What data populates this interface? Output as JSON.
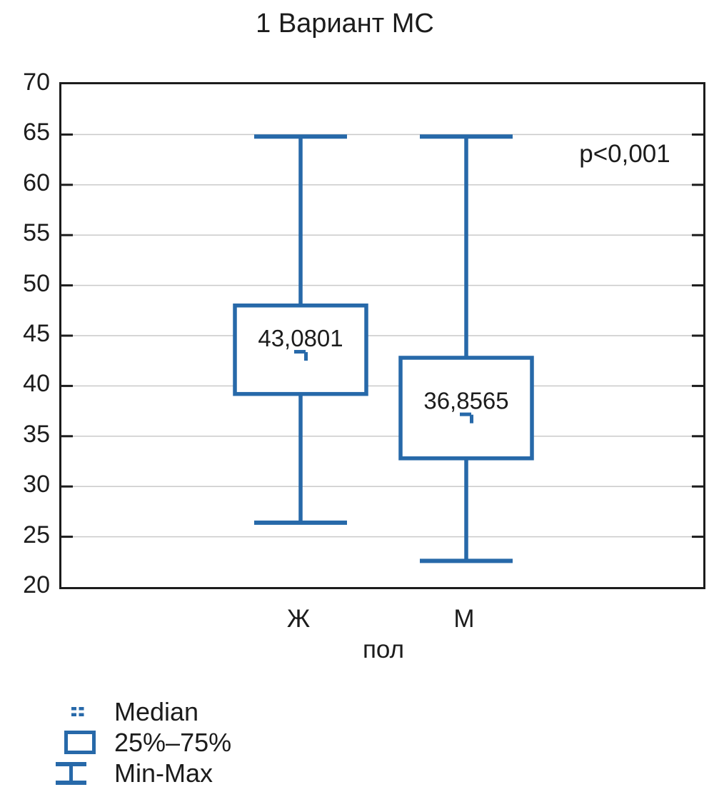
{
  "title": "1 Вариант МС",
  "annotation": "p<0,001",
  "colors": {
    "box_blue": "#2769a9",
    "grid_gray": "#c9c9c9",
    "frame_black": "#1c1c1c"
  },
  "legend": {
    "items": [
      {
        "icon": "median-marker-icon",
        "label": "Median"
      },
      {
        "icon": "quartile-box-icon",
        "label": "25%–75%"
      },
      {
        "icon": "minmax-whisker-icon",
        "label": "Min-Max"
      }
    ]
  },
  "chart_data": {
    "type": "box",
    "title": "1 Вариант МС",
    "xlabel": "пол",
    "ylabel": "",
    "ylim": [
      20,
      70
    ],
    "yticks": [
      70,
      65,
      60,
      55,
      50,
      45,
      40,
      35,
      30,
      25,
      20
    ],
    "grid": "horizontal",
    "categories": [
      "Ж",
      "М"
    ],
    "series": [
      {
        "category": "Ж",
        "median": 43.0801,
        "median_label": "43,0801",
        "q1": 39.2,
        "q3": 48.0,
        "min": 26.4,
        "max": 64.8
      },
      {
        "category": "М",
        "median": 36.8565,
        "median_label": "36,8565",
        "q1": 32.8,
        "q3": 42.8,
        "min": 22.6,
        "max": 64.8
      }
    ],
    "annotation": "p<0,001",
    "legend_position": "bottom-left",
    "legend": [
      "Median",
      "25%–75%",
      "Min-Max"
    ]
  }
}
